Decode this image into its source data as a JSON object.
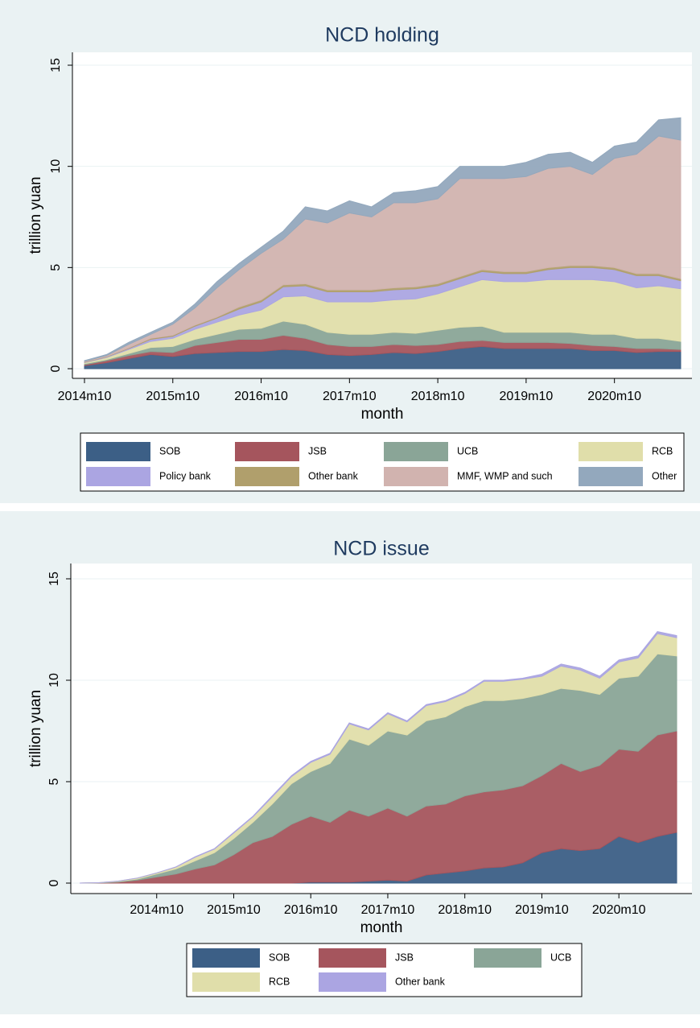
{
  "chart_data": [
    {
      "type": "area",
      "title": "NCD holding",
      "xlabel": "month",
      "ylabel": "trillion yuan",
      "grid": true,
      "x": [
        "2014m10",
        "2015m1",
        "2015m4",
        "2015m7",
        "2015m10",
        "2016m1",
        "2016m4",
        "2016m7",
        "2016m10",
        "2017m1",
        "2017m4",
        "2017m7",
        "2017m10",
        "2018m1",
        "2018m4",
        "2018m7",
        "2018m10",
        "2019m1",
        "2019m4",
        "2019m7",
        "2019m10",
        "2020m1",
        "2020m4",
        "2020m7",
        "2020m10",
        "2021m1",
        "2021m4",
        "2021m7"
      ],
      "xlim": [
        "2014m10",
        "2021m7"
      ],
      "xticks": [
        "2014m10",
        "2015m10",
        "2016m10",
        "2017m10",
        "2018m10",
        "2019m10",
        "2020m10"
      ],
      "ylim": [
        0,
        15
      ],
      "yticks": [
        0,
        5,
        10,
        15
      ],
      "series": [
        {
          "name": "SOB",
          "color": "#3c5f86",
          "values": [
            0.15,
            0.3,
            0.5,
            0.7,
            0.6,
            0.75,
            0.8,
            0.85,
            0.85,
            0.95,
            0.9,
            0.7,
            0.65,
            0.7,
            0.8,
            0.75,
            0.85,
            1.0,
            1.1,
            1.0,
            1.0,
            1.0,
            1.0,
            0.9,
            0.9,
            0.8,
            0.85,
            0.85
          ]
        },
        {
          "name": "JSB",
          "color": "#a5555d",
          "values": [
            0.05,
            0.1,
            0.15,
            0.15,
            0.2,
            0.4,
            0.5,
            0.6,
            0.6,
            0.7,
            0.6,
            0.5,
            0.45,
            0.4,
            0.4,
            0.4,
            0.35,
            0.35,
            0.3,
            0.3,
            0.3,
            0.3,
            0.25,
            0.25,
            0.2,
            0.2,
            0.15,
            0.1
          ]
        },
        {
          "name": "UCB",
          "color": "#8aa597",
          "values": [
            0.05,
            0.05,
            0.1,
            0.2,
            0.3,
            0.3,
            0.4,
            0.5,
            0.55,
            0.7,
            0.7,
            0.6,
            0.6,
            0.6,
            0.6,
            0.6,
            0.7,
            0.7,
            0.7,
            0.5,
            0.5,
            0.5,
            0.55,
            0.55,
            0.6,
            0.5,
            0.5,
            0.4
          ]
        },
        {
          "name": "RCB",
          "color": "#e0deaa",
          "values": [
            0.05,
            0.1,
            0.2,
            0.3,
            0.4,
            0.5,
            0.6,
            0.7,
            0.9,
            1.2,
            1.4,
            1.5,
            1.6,
            1.6,
            1.6,
            1.7,
            1.8,
            2.0,
            2.3,
            2.5,
            2.5,
            2.6,
            2.6,
            2.7,
            2.6,
            2.5,
            2.6,
            2.6
          ]
        },
        {
          "name": "Policy bank",
          "color": "#aba5e2",
          "values": [
            0.02,
            0.03,
            0.05,
            0.1,
            0.1,
            0.15,
            0.2,
            0.3,
            0.4,
            0.5,
            0.5,
            0.5,
            0.5,
            0.5,
            0.5,
            0.5,
            0.4,
            0.4,
            0.4,
            0.4,
            0.4,
            0.5,
            0.6,
            0.6,
            0.6,
            0.6,
            0.5,
            0.4
          ]
        },
        {
          "name": "Other bank",
          "color": "#b09f6c",
          "values": [
            0.02,
            0.02,
            0.03,
            0.05,
            0.05,
            0.05,
            0.05,
            0.1,
            0.1,
            0.1,
            0.1,
            0.1,
            0.1,
            0.1,
            0.1,
            0.1,
            0.1,
            0.1,
            0.1,
            0.1,
            0.1,
            0.1,
            0.1,
            0.1,
            0.1,
            0.1,
            0.1,
            0.1
          ]
        },
        {
          "name": "MMF, WMP and such",
          "color": "#d1b3af",
          "values": [
            0.03,
            0.05,
            0.17,
            0.2,
            0.55,
            0.85,
            1.45,
            1.85,
            2.3,
            2.25,
            3.2,
            3.3,
            3.8,
            3.6,
            4.2,
            4.15,
            4.2,
            4.85,
            4.5,
            4.6,
            4.7,
            4.9,
            4.9,
            4.5,
            5.4,
            5.9,
            6.8,
            6.85
          ]
        },
        {
          "name": "Other",
          "color": "#93a8bd",
          "values": [
            0.03,
            0.05,
            0.1,
            0.1,
            0.1,
            0.2,
            0.3,
            0.3,
            0.3,
            0.4,
            0.6,
            0.6,
            0.6,
            0.5,
            0.5,
            0.6,
            0.6,
            0.6,
            0.6,
            0.6,
            0.7,
            0.7,
            0.7,
            0.6,
            0.6,
            0.6,
            0.8,
            1.1
          ]
        }
      ]
    },
    {
      "type": "area",
      "title": "NCD issue",
      "xlabel": "month",
      "ylabel": "trillion yuan",
      "grid": true,
      "x": [
        "2013m10",
        "2014m1",
        "2014m4",
        "2014m7",
        "2014m10",
        "2015m1",
        "2015m4",
        "2015m7",
        "2015m10",
        "2016m1",
        "2016m4",
        "2016m7",
        "2016m10",
        "2017m1",
        "2017m4",
        "2017m7",
        "2017m10",
        "2018m1",
        "2018m4",
        "2018m7",
        "2018m10",
        "2019m1",
        "2019m4",
        "2019m7",
        "2019m10",
        "2020m1",
        "2020m4",
        "2020m7",
        "2020m10",
        "2021m1",
        "2021m4",
        "2021m7"
      ],
      "xlim": [
        "2013m10",
        "2021m7"
      ],
      "xticks": [
        "2014m10",
        "2015m10",
        "2016m10",
        "2017m10",
        "2018m10",
        "2019m10",
        "2020m10"
      ],
      "ylim": [
        0,
        15
      ],
      "yticks": [
        0,
        5,
        10,
        15
      ],
      "series": [
        {
          "name": "SOB",
          "color": "#3c5f86",
          "values": [
            0,
            0,
            0,
            0,
            0,
            0,
            0,
            0,
            0,
            0,
            0,
            0,
            0.05,
            0.05,
            0.05,
            0.1,
            0.15,
            0.1,
            0.4,
            0.5,
            0.6,
            0.75,
            0.8,
            1.0,
            1.5,
            1.7,
            1.6,
            1.7,
            2.3,
            2.0,
            2.3,
            2.5
          ]
        },
        {
          "name": "JSB",
          "color": "#a5555d",
          "values": [
            0,
            0.01,
            0.05,
            0.15,
            0.3,
            0.45,
            0.7,
            0.9,
            1.4,
            2.0,
            2.3,
            2.9,
            3.25,
            2.95,
            3.55,
            3.2,
            3.55,
            3.2,
            3.4,
            3.4,
            3.7,
            3.75,
            3.8,
            3.8,
            3.8,
            4.2,
            3.9,
            4.1,
            4.3,
            4.5,
            5.0,
            5.0
          ]
        },
        {
          "name": "UCB",
          "color": "#8aa597",
          "values": [
            0,
            0.01,
            0.03,
            0.05,
            0.15,
            0.25,
            0.4,
            0.6,
            0.8,
            1.0,
            1.6,
            2.0,
            2.2,
            2.9,
            3.5,
            3.5,
            3.8,
            4.0,
            4.2,
            4.3,
            4.4,
            4.5,
            4.4,
            4.3,
            4.0,
            3.7,
            4.0,
            3.5,
            3.5,
            3.7,
            4.0,
            3.7
          ]
        },
        {
          "name": "RCB",
          "color": "#e0deaa",
          "values": [
            0,
            0,
            0.02,
            0.05,
            0.05,
            0.09,
            0.18,
            0.18,
            0.27,
            0.27,
            0.35,
            0.35,
            0.45,
            0.45,
            0.75,
            0.75,
            0.85,
            0.65,
            0.75,
            0.75,
            0.65,
            0.95,
            0.95,
            0.95,
            0.9,
            1.1,
            1.0,
            0.8,
            0.8,
            0.9,
            1.0,
            0.9
          ]
        },
        {
          "name": "Other bank",
          "color": "#aba5e2",
          "values": [
            0,
            0,
            0,
            0,
            0,
            0.01,
            0.02,
            0.02,
            0.03,
            0.03,
            0.05,
            0.05,
            0.05,
            0.05,
            0.05,
            0.05,
            0.05,
            0.05,
            0.05,
            0.05,
            0.05,
            0.05,
            0.05,
            0.05,
            0.1,
            0.1,
            0.1,
            0.1,
            0.1,
            0.1,
            0.1,
            0.1
          ]
        }
      ]
    }
  ]
}
